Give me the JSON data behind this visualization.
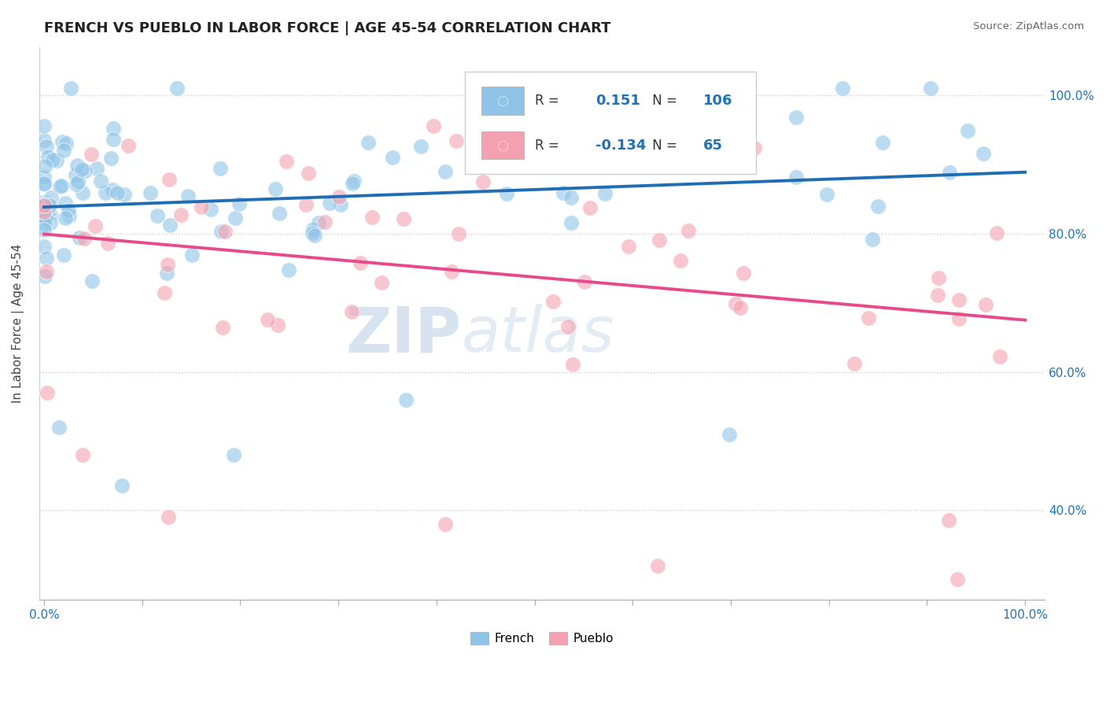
{
  "title": "FRENCH VS PUEBLO IN LABOR FORCE | AGE 45-54 CORRELATION CHART",
  "source": "Source: ZipAtlas.com",
  "ylabel": "In Labor Force | Age 45-54",
  "french_r": 0.151,
  "french_n": 106,
  "pueblo_r": -0.134,
  "pueblo_n": 65,
  "french_color": "#8fc4e8",
  "pueblo_color": "#f4a0b0",
  "french_line_color": "#1f6db5",
  "pueblo_line_color": "#e8498a",
  "watermark_zip": "ZIP",
  "watermark_atlas": "atlas",
  "background_color": "#ffffff",
  "x_ticks": [
    0.0,
    0.1,
    0.2,
    0.3,
    0.4,
    0.5,
    0.6,
    0.7,
    0.8,
    0.9,
    1.0
  ],
  "y_ticks_right": [
    0.4,
    0.6,
    0.8,
    1.0
  ],
  "xlim": [
    -0.005,
    1.02
  ],
  "ylim": [
    0.27,
    1.07
  ],
  "legend_labels": [
    "French",
    "Pueblo"
  ],
  "tick_color": "#2171b5"
}
